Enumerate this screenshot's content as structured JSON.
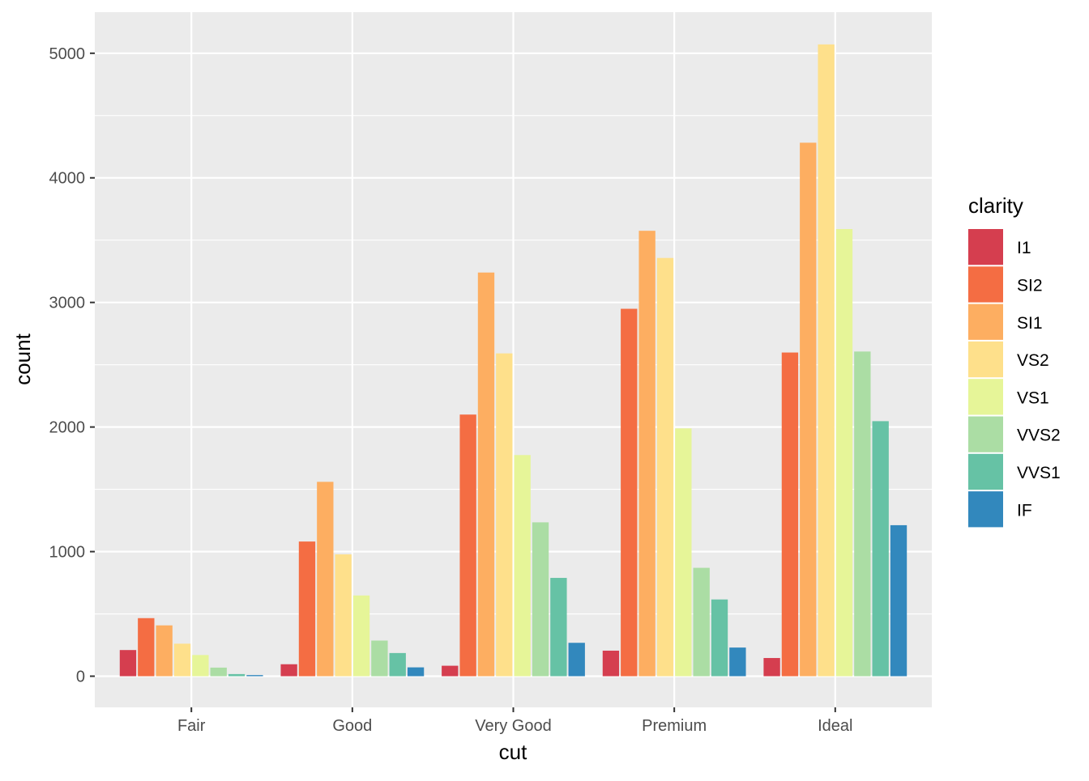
{
  "chart_data": {
    "type": "bar",
    "title": "",
    "xlabel": "cut",
    "ylabel": "count",
    "categories": [
      "Fair",
      "Good",
      "Very Good",
      "Premium",
      "Ideal"
    ],
    "ylim": [
      -250,
      5330
    ],
    "yticks": [
      0,
      1000,
      2000,
      3000,
      4000,
      5000
    ],
    "grid": true,
    "legend": {
      "title": "clarity",
      "position": "right"
    },
    "series": [
      {
        "name": "I1",
        "color": "#d53e4f",
        "values": [
          210,
          96,
          84,
          205,
          146
        ]
      },
      {
        "name": "SI2",
        "color": "#f46d43",
        "values": [
          466,
          1081,
          2100,
          2949,
          2598
        ]
      },
      {
        "name": "SI1",
        "color": "#fdae61",
        "values": [
          408,
          1560,
          3240,
          3575,
          4282
        ]
      },
      {
        "name": "VS2",
        "color": "#fee08b",
        "values": [
          261,
          978,
          2591,
          3357,
          5071
        ]
      },
      {
        "name": "VS1",
        "color": "#e6f598",
        "values": [
          170,
          648,
          1775,
          1989,
          3589
        ]
      },
      {
        "name": "VVS2",
        "color": "#abdda4",
        "values": [
          69,
          286,
          1235,
          870,
          2606
        ]
      },
      {
        "name": "VVS1",
        "color": "#66c2a5",
        "values": [
          17,
          186,
          789,
          616,
          2047
        ]
      },
      {
        "name": "IF",
        "color": "#3288bd",
        "values": [
          9,
          71,
          268,
          230,
          1212
        ]
      }
    ]
  }
}
